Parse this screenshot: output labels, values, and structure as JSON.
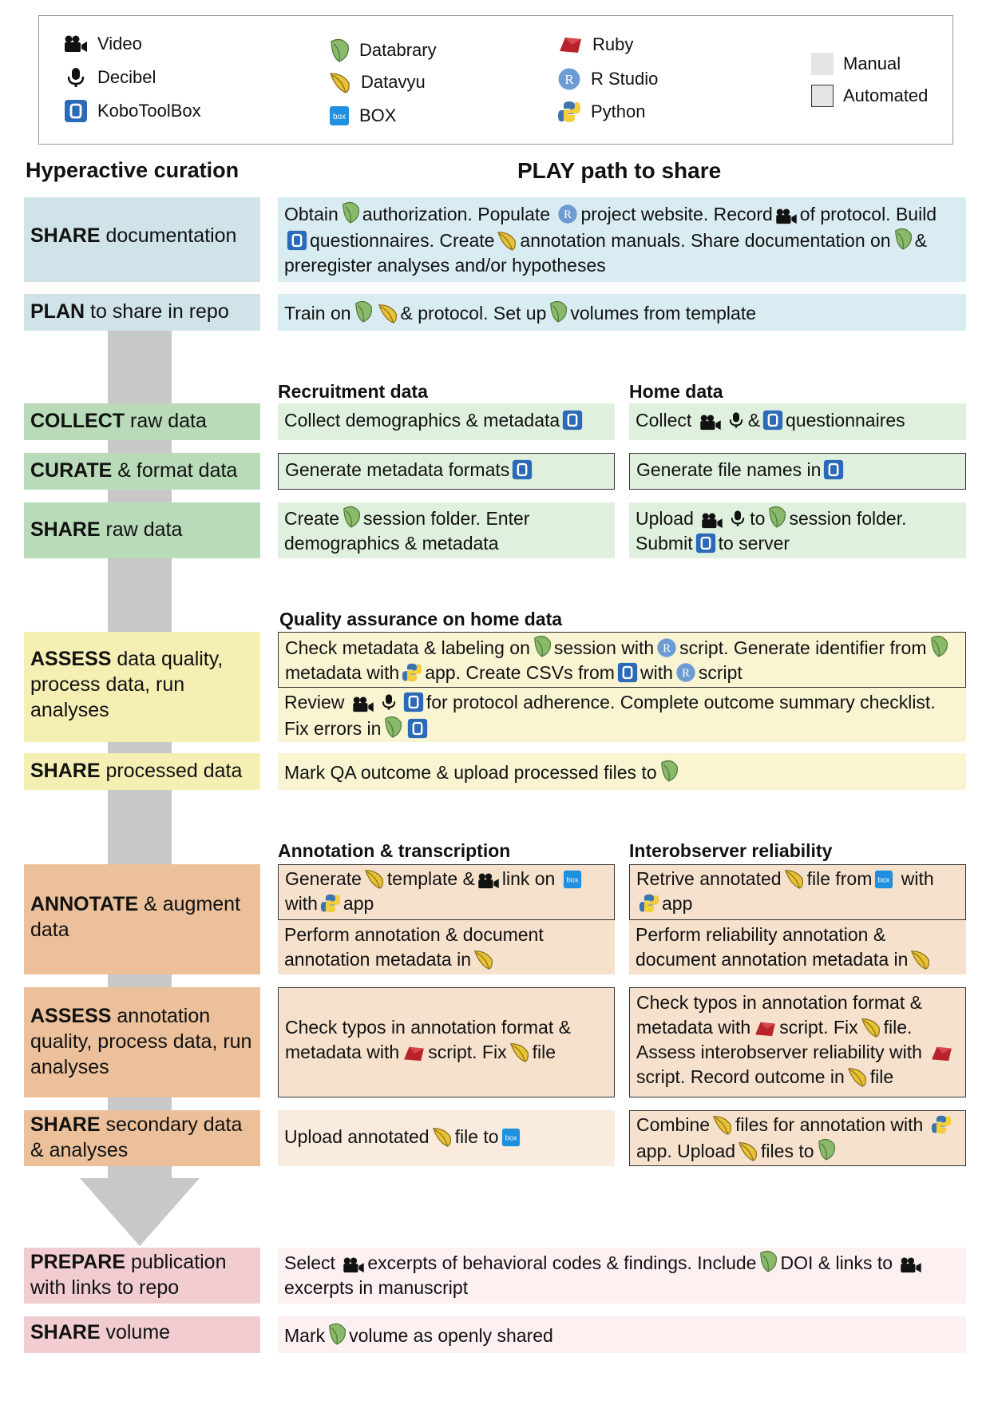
{
  "legend": {
    "items": [
      {
        "icon": "video-camera-icon",
        "label": "Video"
      },
      {
        "icon": "microphone-icon",
        "label": "Decibel"
      },
      {
        "icon": "kobotoolbox-icon",
        "label": "KoboToolBox"
      },
      {
        "icon": "databrary-leaf-icon",
        "label": "Databrary"
      },
      {
        "icon": "datavyu-leaf-icon",
        "label": "Datavyu"
      },
      {
        "icon": "box-icon",
        "label": "BOX"
      },
      {
        "icon": "ruby-icon",
        "label": "Ruby"
      },
      {
        "icon": "r-studio-icon",
        "label": "R Studio"
      },
      {
        "icon": "python-icon",
        "label": "Python"
      },
      {
        "icon": "manual-swatch",
        "label": "Manual"
      },
      {
        "icon": "automated-swatch",
        "label": "Automated"
      }
    ]
  },
  "headers": {
    "left": "Hyperactive curation",
    "right": "PLAY path to share",
    "recruitment": "Recruitment data",
    "home": "Home data",
    "qa": "Quality assurance on home data",
    "annotation": "Annotation & transcription",
    "interobserver": "Interobserver reliability"
  },
  "stages": [
    {
      "bold": "SHARE",
      "rest": " documentation"
    },
    {
      "bold": "PLAN",
      "rest": " to share in repo"
    },
    {
      "bold": "COLLECT",
      "rest": " raw data"
    },
    {
      "bold": "CURATE",
      "rest": " & format data"
    },
    {
      "bold": "SHARE",
      "rest": " raw data"
    },
    {
      "bold": "ASSESS",
      "rest": " data quality, process data, run analyses"
    },
    {
      "bold": "SHARE",
      "rest": " processed data"
    },
    {
      "bold": "ANNOTATE",
      "rest": " & augment data"
    },
    {
      "bold": "ASSESS",
      "rest": " annotation quality, process data, run analyses"
    },
    {
      "bold": "SHARE",
      "rest": " secondary data & analyses"
    },
    {
      "bold": "PREPARE",
      "rest": " publication with links to repo"
    },
    {
      "bold": "SHARE",
      "rest": " volume"
    }
  ],
  "text": {
    "doc": [
      "Obtain",
      "authorization. Populate",
      "project website. Record",
      "of protocol. Build",
      "questionnaires. Create",
      "annotation manuals. Share documentation on",
      "& preregister analyses and/or hypotheses"
    ],
    "plan": [
      "Train on",
      "& protocol. Set up",
      "volumes from template"
    ],
    "collect_rec": [
      "Collect demographics & metadata"
    ],
    "collect_home": [
      "Collect",
      "&",
      "questionnaires"
    ],
    "curate_rec": [
      "Generate metadata formats"
    ],
    "curate_home": [
      "Generate file names in"
    ],
    "share_rec": [
      "Create",
      "session folder. Enter demographics & metadata"
    ],
    "share_home": [
      "Upload",
      "to",
      "session folder. Submit",
      "to server"
    ],
    "qa1": [
      "Check metadata & labeling on",
      "session with",
      "script. Generate identifier from",
      "metadata with",
      "app. Create CSVs from",
      "with",
      "script"
    ],
    "qa2": [
      "Review",
      "for protocol adherence. Complete outcome summary checklist. Fix errors in"
    ],
    "share_proc": [
      "Mark QA outcome & upload processed files to"
    ],
    "ann1": [
      "Generate",
      "template &",
      "link on",
      "with",
      "app"
    ],
    "ann2": [
      "Perform annotation & document annotation metadata in"
    ],
    "ior1": [
      "Retrive annotated",
      "file from",
      "with",
      "app"
    ],
    "ior2": [
      "Perform reliability annotation & document annotation metadata in"
    ],
    "assessA": [
      "Check typos in annotation format & metadata with",
      "script. Fix",
      "file"
    ],
    "assessB": [
      "Check typos in annotation format & metadata with",
      "script. Fix",
      "file. Assess interobserver reliability with",
      "script. Record outcome in",
      "file"
    ],
    "secA": [
      "Upload annotated",
      "file to"
    ],
    "secB": [
      "Combine",
      "files for annotation with",
      "app. Upload",
      "files to"
    ],
    "prep": [
      "Select",
      "excerpts of behavioral codes & findings. Include",
      "DOI & links to",
      "excerpts in manuscript"
    ],
    "vol": [
      "Mark",
      "volume as openly shared"
    ]
  },
  "colors": {
    "share_doc": "#cfe3e9",
    "collect": "#b9dbb9",
    "assess": "#f5efb4",
    "annotate": "#ebc09a",
    "prepare": "#f1cdd2",
    "arrow": "#c8c8c8"
  }
}
